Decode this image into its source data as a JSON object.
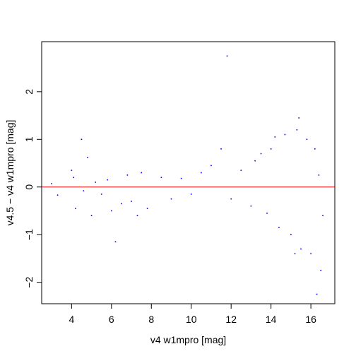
{
  "chart_data": {
    "type": "scatter",
    "title": "",
    "xlabel": "v4 w1mpro [mag]",
    "ylabel": "v4.5 − v4 w1mpro [mag]",
    "xlim": [
      2.5,
      17.2
    ],
    "ylim": [
      -2.45,
      3.05
    ],
    "x_ticks": [
      4,
      6,
      8,
      10,
      12,
      14,
      16
    ],
    "y_ticks": [
      -2,
      -1,
      0,
      1,
      2
    ],
    "x_tick_labels": [
      "4",
      "6",
      "8",
      "10",
      "12",
      "14",
      "16"
    ],
    "y_tick_labels": [
      "−2",
      "−1",
      "0",
      "1",
      "2"
    ],
    "reference_line": {
      "y": 0,
      "color": "#ff0000"
    },
    "point_color": "#0000ff",
    "grid": false,
    "series": [
      {
        "points": [
          [
            3.0,
            0.07
          ],
          [
            3.3,
            -0.17
          ],
          [
            4.0,
            0.35
          ],
          [
            4.1,
            0.2
          ],
          [
            4.2,
            -0.45
          ],
          [
            4.5,
            1.0
          ],
          [
            4.6,
            -0.08
          ],
          [
            4.8,
            0.62
          ],
          [
            5.0,
            -0.6
          ],
          [
            5.2,
            0.1
          ],
          [
            5.5,
            -0.15
          ],
          [
            5.8,
            0.15
          ],
          [
            6.0,
            -0.5
          ],
          [
            6.2,
            -1.15
          ],
          [
            6.5,
            -0.35
          ],
          [
            6.8,
            0.25
          ],
          [
            7.0,
            -0.3
          ],
          [
            7.3,
            -0.6
          ],
          [
            7.5,
            0.3
          ],
          [
            7.8,
            -0.45
          ],
          [
            8.5,
            0.2
          ],
          [
            9.0,
            -0.25
          ],
          [
            9.5,
            0.18
          ],
          [
            10.0,
            -0.15
          ],
          [
            10.5,
            0.3
          ],
          [
            11.0,
            0.45
          ],
          [
            11.5,
            0.8
          ],
          [
            11.8,
            2.75
          ],
          [
            12.0,
            -0.25
          ],
          [
            12.5,
            0.35
          ],
          [
            13.0,
            -0.4
          ],
          [
            13.5,
            0.7
          ],
          [
            13.8,
            -0.55
          ],
          [
            14.0,
            0.8
          ],
          [
            14.4,
            -0.85
          ],
          [
            14.7,
            1.1
          ],
          [
            15.0,
            -1.0
          ],
          [
            15.3,
            1.2
          ],
          [
            15.5,
            -1.3
          ],
          [
            15.8,
            1.0
          ],
          [
            16.0,
            -1.4
          ],
          [
            16.2,
            0.8
          ],
          [
            16.3,
            -2.25
          ],
          [
            16.5,
            -1.75
          ],
          [
            16.6,
            -0.6
          ],
          [
            15.4,
            1.45
          ],
          [
            15.2,
            -1.4
          ],
          [
            16.4,
            0.25
          ],
          [
            14.2,
            1.05
          ],
          [
            13.2,
            0.55
          ]
        ]
      }
    ]
  }
}
